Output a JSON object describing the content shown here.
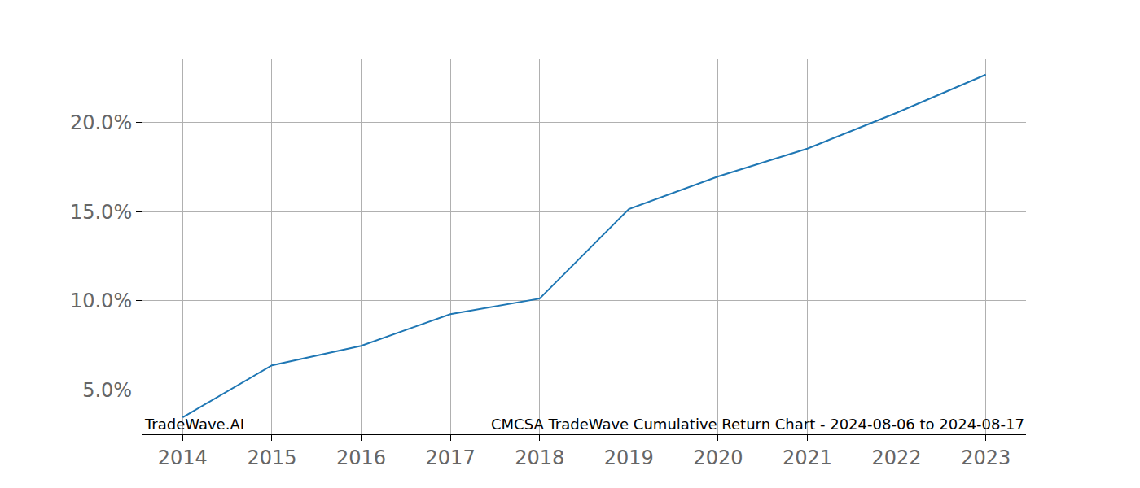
{
  "chart_data": {
    "type": "line",
    "x": [
      2014,
      2015,
      2016,
      2017,
      2018,
      2019,
      2020,
      2021,
      2022,
      2023
    ],
    "values": [
      3.45,
      6.37,
      7.47,
      9.25,
      10.12,
      15.15,
      16.98,
      18.54,
      20.55,
      22.7
    ],
    "color": "#1f77b4",
    "xlim": [
      2013.55,
      2023.45
    ],
    "xticks": [
      2014,
      2015,
      2016,
      2017,
      2018,
      2019,
      2020,
      2021,
      2022,
      2023
    ],
    "ylim": [
      2.5,
      23.6
    ],
    "yticks": [
      {
        "value": 5,
        "label": "5.0%"
      },
      {
        "value": 10,
        "label": "10.0%"
      },
      {
        "value": 15,
        "label": "15.0%"
      },
      {
        "value": 20,
        "label": "20.0%"
      }
    ],
    "grid": true,
    "annotations": [
      "TradeWave.AI",
      "CMCSA TradeWave Cumulative Return Chart - 2024-08-06 to 2024-08-17"
    ]
  }
}
